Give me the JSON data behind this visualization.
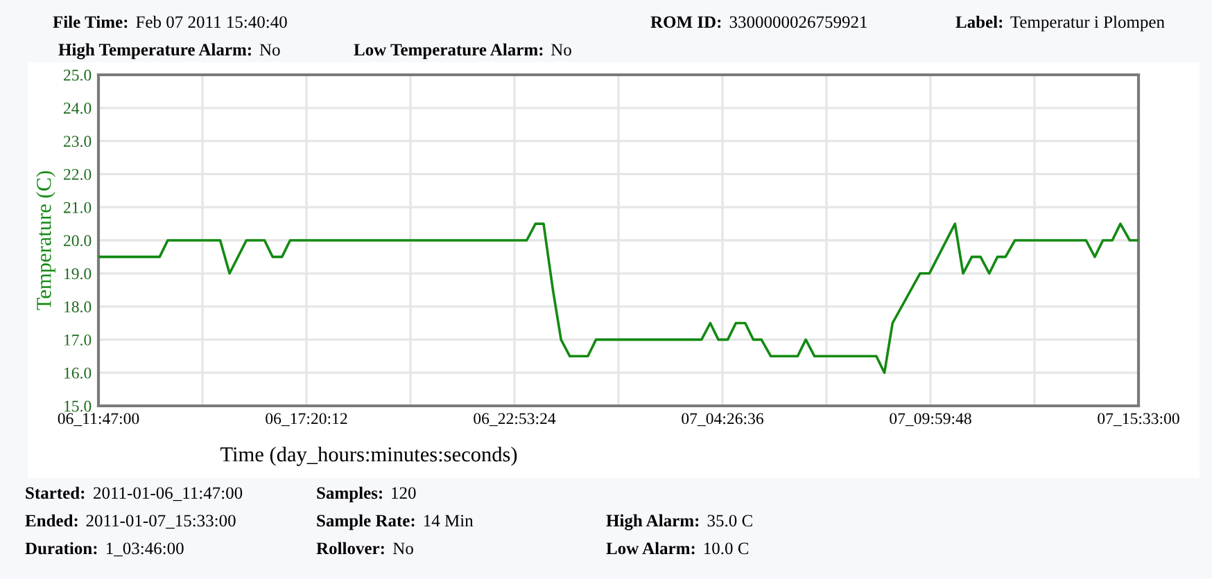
{
  "chart_data": {
    "type": "line",
    "xlabel": "Time (day_hours:minutes:seconds)",
    "ylabel": "Temperature (C)",
    "annotations": [
      "File Time: Feb 07 2011 15:40:40",
      "ROM ID: 3300000026759921",
      "Label: Temperatur i Plompen",
      "High Temperature Alarm: No",
      "Low Temperature Alarm: No",
      "Started: 2011-01-06_11:47:00",
      "Samples: 120",
      "Ended: 2011-01-07_15:33:00",
      "Sample Rate: 14 Min",
      "High Alarm: 35.0 C",
      "Duration: 1_03:46:00",
      "Rollover: No",
      "Low Alarm: 10.0 C"
    ],
    "series": [
      {
        "color": "#138a13",
        "x": [
          "2011-01-06T11:47",
          "2011-01-06T13:25",
          "2011-01-06T13:38",
          "2011-01-06T15:02",
          "2011-01-06T15:17",
          "2011-01-06T15:44",
          "2011-01-06T16:13",
          "2011-01-06T16:26",
          "2011-01-06T16:41",
          "2011-01-06T16:54",
          "2011-01-06T23:13",
          "2011-01-06T23:27",
          "2011-01-06T23:40",
          "2011-01-06T23:55",
          "2011-01-07T00:08",
          "2011-01-07T00:22",
          "2011-01-07T00:51",
          "2011-01-07T01:04",
          "2011-01-07T03:53",
          "2011-01-07T04:07",
          "2011-01-07T04:20",
          "2011-01-07T04:35",
          "2011-01-07T04:48",
          "2011-01-07T05:03",
          "2011-01-07T05:16",
          "2011-01-07T05:29",
          "2011-01-07T05:44",
          "2011-01-07T06:27",
          "2011-01-07T06:40",
          "2011-01-07T06:54",
          "2011-01-07T08:33",
          "2011-01-07T08:46",
          "2011-01-07T08:59",
          "2011-01-07T09:43",
          "2011-01-07T09:58",
          "2011-01-07T10:39",
          "2011-01-07T10:52",
          "2011-01-07T11:06",
          "2011-01-07T11:20",
          "2011-01-07T11:34",
          "2011-01-07T11:47",
          "2011-01-07T12:00",
          "2011-01-07T12:15",
          "2011-01-07T14:09",
          "2011-01-07T14:23",
          "2011-01-07T14:36",
          "2011-01-07T14:51",
          "2011-01-07T15:04",
          "2011-01-07T15:19",
          "2011-01-07T15:33"
        ],
        "values": [
          19.5,
          19.5,
          20.0,
          20.0,
          19.0,
          20.0,
          20.0,
          19.5,
          19.5,
          20.0,
          20.0,
          20.5,
          20.5,
          18.5,
          17.0,
          16.5,
          16.5,
          17.0,
          17.0,
          17.5,
          17.0,
          17.0,
          17.5,
          17.5,
          17.0,
          17.0,
          16.5,
          16.5,
          17.0,
          16.5,
          16.5,
          16.0,
          17.5,
          19.0,
          19.0,
          20.5,
          19.0,
          19.5,
          19.5,
          19.0,
          19.5,
          19.5,
          20.0,
          20.0,
          19.5,
          20.0,
          20.0,
          20.5,
          20.0,
          20.0
        ]
      }
    ],
    "xlim": [
      "2011-01-06T11:47",
      "2011-01-07T15:33"
    ],
    "xticks": [
      {
        "value": "2011-01-06T11:47:00",
        "label": "06_11:47:00"
      },
      {
        "value": "2011-01-06T14:33:36",
        "label": null
      },
      {
        "value": "2011-01-06T17:20:12",
        "label": "06_17:20:12"
      },
      {
        "value": "2011-01-06T20:06:48",
        "label": null
      },
      {
        "value": "2011-01-06T22:53:24",
        "label": "06_22:53:24"
      },
      {
        "value": "2011-01-07T01:40:00",
        "label": null
      },
      {
        "value": "2011-01-07T04:26:36",
        "label": "07_04:26:36"
      },
      {
        "value": "2011-01-07T07:13:12",
        "label": null
      },
      {
        "value": "2011-01-07T09:59:48",
        "label": "07_09:59:48"
      },
      {
        "value": "2011-01-07T12:46:24",
        "label": null
      },
      {
        "value": "2011-01-07T15:33:00",
        "label": "07_15:33:00"
      }
    ],
    "ylim": [
      15,
      25
    ],
    "yticks": [
      {
        "value": 15,
        "label": "15.0"
      },
      {
        "value": 16,
        "label": "16.0"
      },
      {
        "value": 17,
        "label": "17.0"
      },
      {
        "value": 18,
        "label": "18.0"
      },
      {
        "value": 19,
        "label": "19.0"
      },
      {
        "value": 20,
        "label": "20.0"
      },
      {
        "value": 21,
        "label": "21.0"
      },
      {
        "value": 22,
        "label": "22.0"
      },
      {
        "value": 23,
        "label": "23.0"
      },
      {
        "value": 24,
        "label": "24.0"
      },
      {
        "value": 25,
        "label": "25.0"
      }
    ],
    "grid": true,
    "line_style": "solid",
    "marker": "none"
  }
}
